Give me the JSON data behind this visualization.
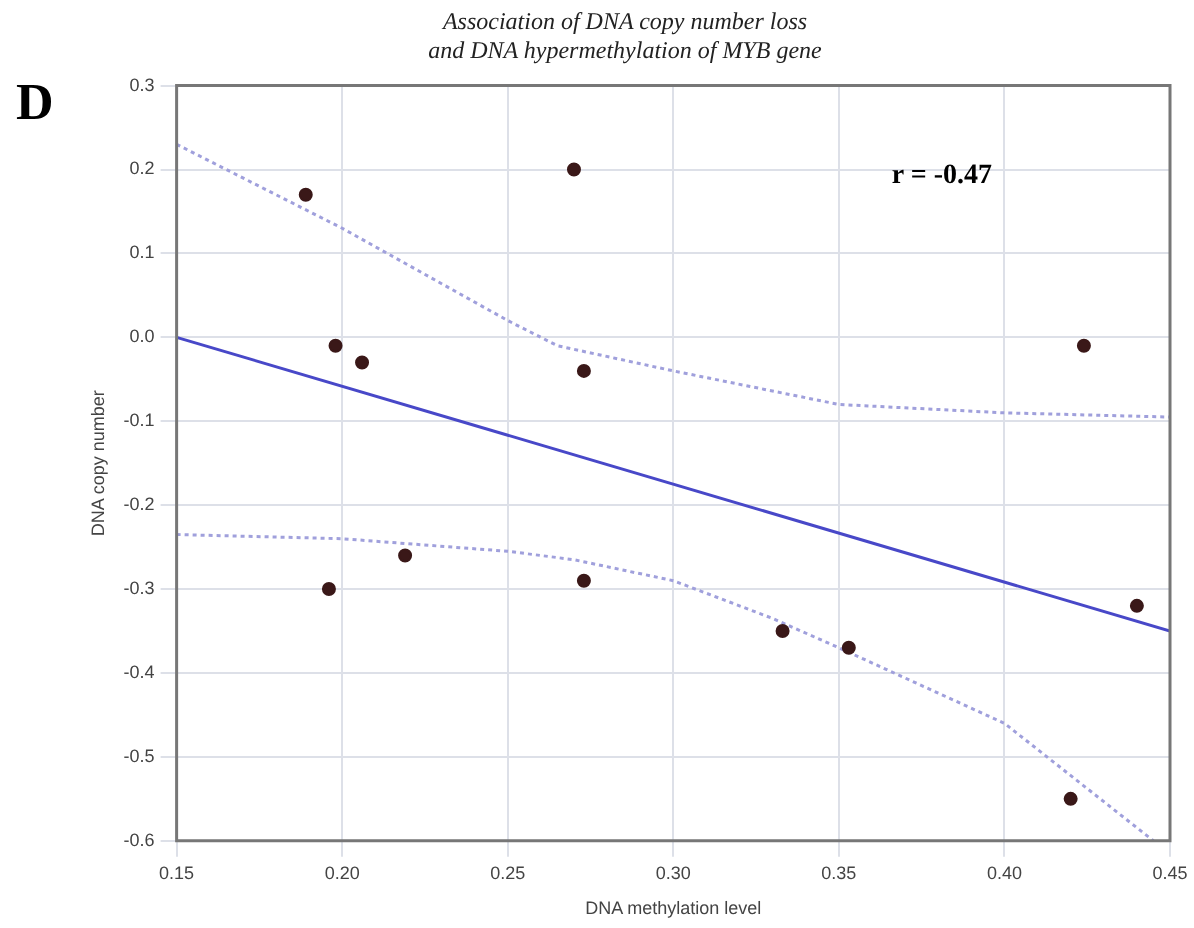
{
  "chart_data": {
    "type": "scatter",
    "title": "Association of DNA copy number loss\nand DNA hypermethylation of MYB gene",
    "xlabel": "DNA methylation level",
    "ylabel": "DNA copy number",
    "annotations": [
      "D",
      "r = -0.47"
    ],
    "series": [
      {
        "color": "#3a1818",
        "marker": "circle",
        "x": [
          0.189,
          0.198,
          0.206,
          0.196,
          0.219,
          0.27,
          0.273,
          0.273,
          0.333,
          0.353,
          0.424,
          0.44,
          0.42
        ],
        "values": [
          0.17,
          -0.01,
          -0.03,
          -0.3,
          -0.26,
          0.2,
          -0.04,
          -0.29,
          -0.35,
          -0.37,
          -0.01,
          -0.32,
          -0.55
        ]
      },
      {
        "type": "line",
        "color": "#4848c8",
        "marker": "none",
        "line_style": "solid",
        "x": [
          0.15,
          0.45
        ],
        "values": [
          0.0,
          -0.35
        ]
      },
      {
        "type": "line",
        "color": "#a0a0dc",
        "marker": "none",
        "line_style": "dotted",
        "x": [
          0.15,
          0.2,
          0.25,
          0.265,
          0.3,
          0.35,
          0.4,
          0.45
        ],
        "values": [
          0.23,
          0.13,
          0.02,
          -0.01,
          -0.04,
          -0.08,
          -0.09,
          -0.095
        ]
      },
      {
        "type": "line",
        "color": "#a0a0dc",
        "marker": "none",
        "line_style": "dotted",
        "x": [
          0.15,
          0.2,
          0.25,
          0.27,
          0.3,
          0.33,
          0.35,
          0.4,
          0.445
        ],
        "values": [
          -0.235,
          -0.24,
          -0.255,
          -0.265,
          -0.29,
          -0.335,
          -0.37,
          -0.46,
          -0.6
        ]
      }
    ],
    "xlim": [
      0.15,
      0.45
    ],
    "xticks": [
      0.15,
      {
        "value": 0.2,
        "label": "0.20"
      },
      0.25,
      {
        "value": 0.3,
        "label": "0.30"
      },
      0.35,
      {
        "value": 0.4,
        "label": "0.40"
      },
      0.45
    ],
    "ylim": [
      -0.6,
      0.3
    ],
    "yticks": [
      -0.6,
      -0.5,
      -0.4,
      -0.3,
      -0.2,
      -0.1,
      {
        "value": 0,
        "label": "0.0"
      },
      0.1,
      0.2,
      0.3
    ],
    "grid": true,
    "legend": false
  }
}
